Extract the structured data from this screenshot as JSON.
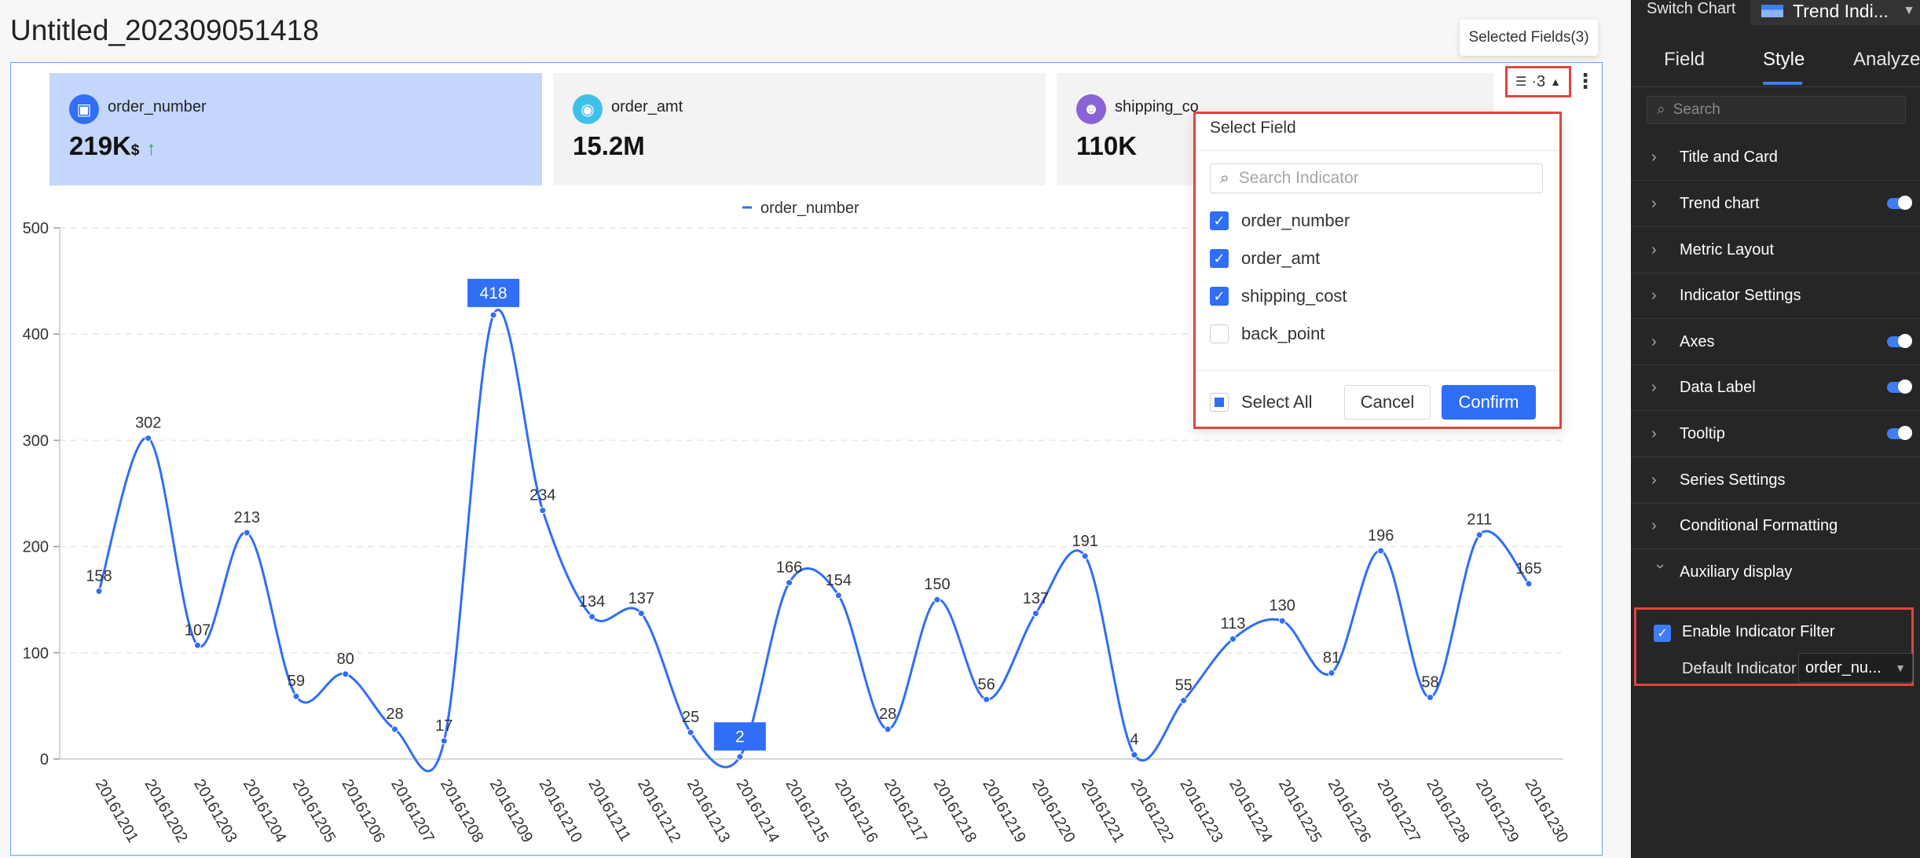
{
  "page_title": "Untitled_202309051418",
  "cards": [
    {
      "name": "order_number",
      "value": "219K",
      "unit": "$",
      "trend": "↑",
      "color": "#2f6ef5",
      "icon": "wallet-icon",
      "selected": true
    },
    {
      "name": "order_amt",
      "value": "15.2M",
      "color": "#3ec1e8",
      "icon": "eye-icon",
      "selected": false
    },
    {
      "name": "shipping_co",
      "value": "110K",
      "color": "#8a63d6",
      "icon": "users-icon",
      "selected": false
    }
  ],
  "selected_fields": {
    "tooltip": "Selected Fields(3)",
    "count": "·3"
  },
  "select_field": {
    "title": "Select Field",
    "search_placeholder": "Search Indicator",
    "options": [
      {
        "label": "order_number",
        "checked": true
      },
      {
        "label": "order_amt",
        "checked": true
      },
      {
        "label": "shipping_cost",
        "checked": true
      },
      {
        "label": "back_point",
        "checked": false
      }
    ],
    "select_all": "Select All",
    "cancel": "Cancel",
    "confirm": "Confirm"
  },
  "chart_data": {
    "type": "line",
    "categories": [
      "20161201",
      "20161202",
      "20161203",
      "20161204",
      "20161205",
      "20161206",
      "20161207",
      "20161208",
      "20161209",
      "20161210",
      "20161211",
      "20161212",
      "20161213",
      "20161214",
      "20161215",
      "20161216",
      "20161217",
      "20161218",
      "20161219",
      "20161220",
      "20161221",
      "20161222",
      "20161223",
      "20161224",
      "20161225",
      "20161226",
      "20161227",
      "20161228",
      "20161229",
      "20161230"
    ],
    "series": [
      {
        "name": "order_number",
        "values": [
          158,
          302,
          107,
          213,
          59,
          80,
          28,
          17,
          418,
          234,
          134,
          137,
          25,
          2,
          166,
          154,
          28,
          150,
          56,
          137,
          191,
          4,
          55,
          113,
          130,
          81,
          196,
          58,
          211,
          165
        ],
        "color": "#2f6ef5"
      }
    ],
    "yticks": [
      0,
      100,
      200,
      300,
      400,
      500
    ],
    "ylim": [
      0,
      500
    ],
    "legend": "top-center",
    "highlighted": [
      "418",
      "2"
    ],
    "grid": true
  },
  "panel": {
    "switch_chart": "Switch Chart",
    "chart_type": "Trend Indi...",
    "tabs": [
      "Field",
      "Style",
      "Analyze"
    ],
    "active_tab": "Style",
    "search_placeholder": "Search",
    "sections": [
      {
        "label": "Title and Card",
        "toggle": false
      },
      {
        "label": "Trend chart",
        "toggle": true
      },
      {
        "label": "Metric Layout",
        "toggle": false
      },
      {
        "label": "Indicator Settings",
        "toggle": false
      },
      {
        "label": "Axes",
        "toggle": true
      },
      {
        "label": "Data Label",
        "toggle": true
      },
      {
        "label": "Tooltip",
        "toggle": true
      },
      {
        "label": "Series Settings",
        "toggle": false
      },
      {
        "label": "Conditional Formatting",
        "toggle": false
      },
      {
        "label": "Auxiliary display",
        "toggle": false,
        "expanded": true
      }
    ],
    "enable_indicator_filter": "Enable Indicator Filter",
    "default_indicator_label": "Default Indicator",
    "default_indicator_value": "order_nu..."
  }
}
